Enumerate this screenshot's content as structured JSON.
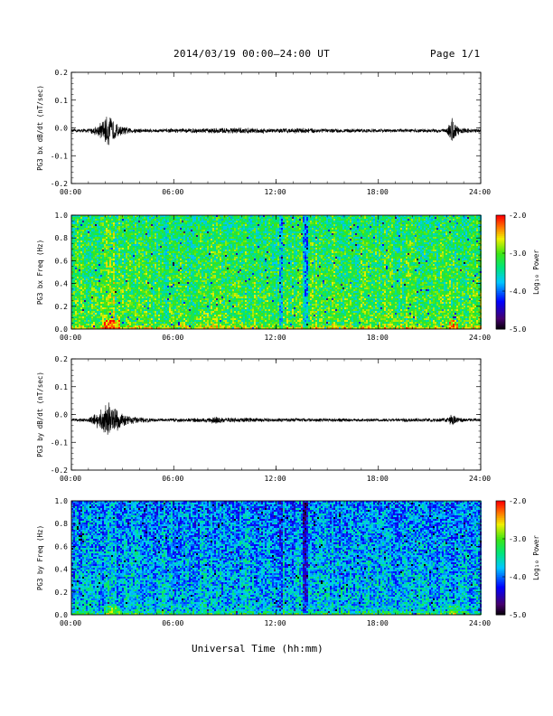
{
  "header": {
    "title": "2014/03/19  00:00–24:00 UT",
    "page": "Page 1/1"
  },
  "xlabel": "Universal Time (hh:mm)",
  "chart_data": [
    {
      "type": "line",
      "ylabel": "PG3 bx dB/dt (nT/sec)",
      "xlim": [
        0,
        24
      ],
      "ylim": [
        -0.2,
        0.2
      ],
      "xticks": [
        "00:00",
        "06:00",
        "12:00",
        "18:00",
        "24:00"
      ],
      "yticks": [
        "0.2",
        "0.1",
        "0.0",
        "-0.1",
        "-0.2"
      ],
      "baseline": -0.01,
      "x": [
        0,
        1,
        1.5,
        2,
        2.2,
        2.4,
        2.8,
        3.5,
        5,
        8,
        9.5,
        12,
        13.6,
        15,
        18,
        22,
        22.3,
        22.6,
        23,
        24
      ],
      "envelope": [
        0.006,
        0.008,
        0.02,
        0.05,
        0.065,
        0.045,
        0.02,
        0.01,
        0.007,
        0.01,
        0.012,
        0.009,
        0.011,
        0.008,
        0.007,
        0.008,
        0.055,
        0.02,
        0.009,
        0.007
      ]
    },
    {
      "type": "heatmap",
      "ylabel": "PG3 bx Freq (Hz)",
      "xlim": [
        0,
        24
      ],
      "ylim": [
        0,
        1
      ],
      "xticks": [
        "00:00",
        "06:00",
        "12:00",
        "18:00",
        "24:00"
      ],
      "yticks": [
        "1.0",
        "0.8",
        "0.6",
        "0.4",
        "0.2",
        "0.0"
      ],
      "colorbar": {
        "label": "Log₁₀ Power",
        "ticks": [
          "-2.0",
          "-3.0",
          "-4.0",
          "-5.0"
        ],
        "range": [
          -5,
          -2
        ]
      },
      "base_level": -3.05
    },
    {
      "type": "line",
      "ylabel": "PG3 by dB/dt (nT/sec)",
      "xlim": [
        0,
        24
      ],
      "ylim": [
        -0.2,
        0.2
      ],
      "xticks": [
        "00:00",
        "06:00",
        "12:00",
        "18:00",
        "24:00"
      ],
      "yticks": [
        "0.2",
        "0.1",
        "0.0",
        "-0.1",
        "-0.2"
      ],
      "baseline": -0.02,
      "x": [
        0,
        1,
        1.5,
        2,
        2.2,
        2.5,
        3,
        3.8,
        5,
        8,
        8.5,
        9,
        12,
        15,
        18,
        22,
        22.3,
        22.6,
        23,
        24
      ],
      "envelope": [
        0.005,
        0.007,
        0.03,
        0.055,
        0.07,
        0.05,
        0.025,
        0.012,
        0.006,
        0.009,
        0.017,
        0.01,
        0.007,
        0.007,
        0.006,
        0.008,
        0.03,
        0.012,
        0.007,
        0.006
      ]
    },
    {
      "type": "heatmap",
      "ylabel": "PG3 by Freq (Hz)",
      "xlim": [
        0,
        24
      ],
      "ylim": [
        0,
        1
      ],
      "xticks": [
        "00:00",
        "06:00",
        "12:00",
        "18:00",
        "24:00"
      ],
      "yticks": [
        "1.0",
        "0.8",
        "0.6",
        "0.4",
        "0.2",
        "0.0"
      ],
      "colorbar": {
        "label": "Log₁₀ Power",
        "ticks": [
          "-2.0",
          "-3.0",
          "-4.0",
          "-5.0"
        ],
        "range": [
          -5,
          -2
        ]
      },
      "base_level": -3.7
    }
  ]
}
